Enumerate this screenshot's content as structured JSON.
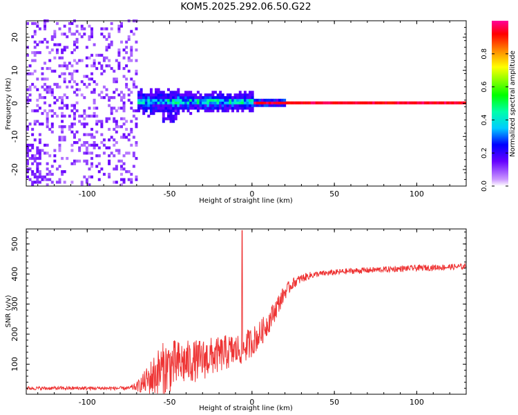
{
  "title": "KOM5.2025.292.06.50.G22",
  "colors": {
    "snr_line": "#ee3333",
    "spectro_low": "#cc99ff",
    "frame": "#000000"
  },
  "chart_data": [
    {
      "type": "heatmap",
      "name": "spectrogram",
      "xlabel": "Height of straight line (km)",
      "ylabel": "Frequency (Hz)",
      "xlim": [
        -137,
        130
      ],
      "ylim": [
        -25,
        25
      ],
      "xticks": [
        -100,
        -50,
        0,
        50,
        100
      ],
      "xtick_labels": [
        "-100",
        "-50",
        "0",
        "50",
        "100"
      ],
      "yticks": [
        20,
        10,
        0,
        -10,
        -20
      ],
      "ytick_labels": [
        "20",
        "10",
        "0",
        "-10",
        "-20"
      ],
      "grid": false,
      "ridge": {
        "description_values": "Dominant tone near 0 Hz; strong (amplitude ~0.9-1.0) from 0 km to 130 km, weaker and broader (0.2-0.4) from -70 km to 0 km, noise only below -70 km",
        "strong_start_km": 0,
        "weak_start_km": -70
      },
      "colorbar": {
        "label": "Normalized spectral amplitude",
        "range": [
          0.0,
          1.0
        ],
        "ticks": [
          0.0,
          0.2,
          0.4,
          0.6,
          0.8
        ],
        "tick_labels": [
          "0.0",
          "0.2",
          "0.4",
          "0.6",
          "0.8"
        ]
      }
    },
    {
      "type": "line",
      "name": "snr",
      "xlabel": "Height of straight line (km)",
      "ylabel": "SNR (v/v)",
      "xlim": [
        -137,
        130
      ],
      "ylim": [
        0,
        550
      ],
      "xticks": [
        -100,
        -50,
        0,
        50,
        100
      ],
      "xtick_labels": [
        "-100",
        "-50",
        "0",
        "50",
        "100"
      ],
      "yticks": [
        100,
        200,
        300,
        400,
        500
      ],
      "ytick_labels": [
        "100",
        "200",
        "300",
        "400",
        "500"
      ],
      "grid": false,
      "series": [
        {
          "name": "SNR",
          "envelope_x": [
            -137,
            -75,
            -70,
            -65,
            -60,
            -55,
            -50,
            -45,
            -40,
            -35,
            -30,
            -25,
            -20,
            -15,
            -10,
            -5,
            0,
            5,
            10,
            15,
            20,
            25,
            30,
            35,
            40,
            50,
            60,
            80,
            100,
            130
          ],
          "envelope_y": [
            20,
            20,
            25,
            40,
            60,
            80,
            95,
            100,
            105,
            110,
            115,
            125,
            130,
            140,
            145,
            155,
            175,
            200,
            240,
            290,
            340,
            370,
            385,
            395,
            400,
            405,
            410,
            415,
            420,
            425
          ],
          "noise_amp": [
            6,
            6,
            15,
            40,
            70,
            90,
            90,
            80,
            75,
            70,
            70,
            65,
            60,
            60,
            55,
            55,
            50,
            45,
            40,
            35,
            25,
            18,
            15,
            12,
            10,
            10,
            10,
            10,
            10,
            10
          ],
          "spike": {
            "x": -6,
            "y": 545
          }
        }
      ]
    }
  ]
}
